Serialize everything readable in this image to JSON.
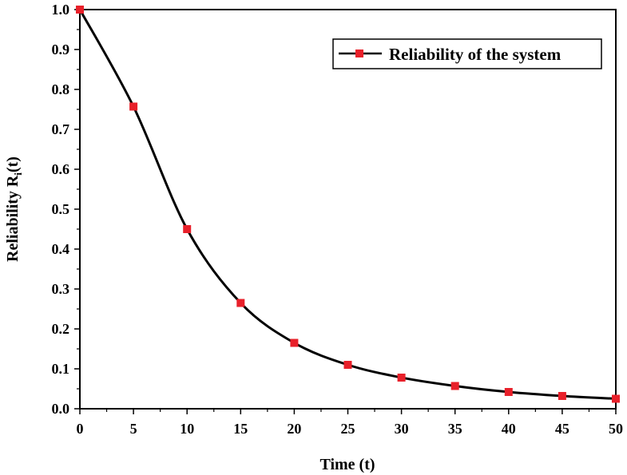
{
  "chart_data": {
    "type": "line",
    "title": "",
    "xlabel": "Time (t)",
    "ylabel_main": "Reliability R",
    "ylabel_sub": "i",
    "ylabel_suffix": "(t)",
    "xlim": [
      0,
      50
    ],
    "ylim": [
      0,
      1.0
    ],
    "x_ticks": [
      "0",
      "5",
      "10",
      "15",
      "20",
      "25",
      "30",
      "35",
      "40",
      "45",
      "50"
    ],
    "y_ticks": [
      "0.0",
      "0.1",
      "0.2",
      "0.3",
      "0.4",
      "0.5",
      "0.6",
      "0.7",
      "0.8",
      "0.9",
      "1.0"
    ],
    "grid": false,
    "legend_position": "top-right",
    "series": [
      {
        "name": "Reliability of the system",
        "line_color": "#000000",
        "marker_color": "#e8202a",
        "marker": "square",
        "x": [
          0,
          5,
          10,
          15,
          20,
          25,
          30,
          35,
          40,
          45,
          50
        ],
        "y": [
          1.0,
          0.757,
          0.45,
          0.265,
          0.165,
          0.11,
          0.078,
          0.057,
          0.042,
          0.032,
          0.025
        ]
      }
    ]
  }
}
